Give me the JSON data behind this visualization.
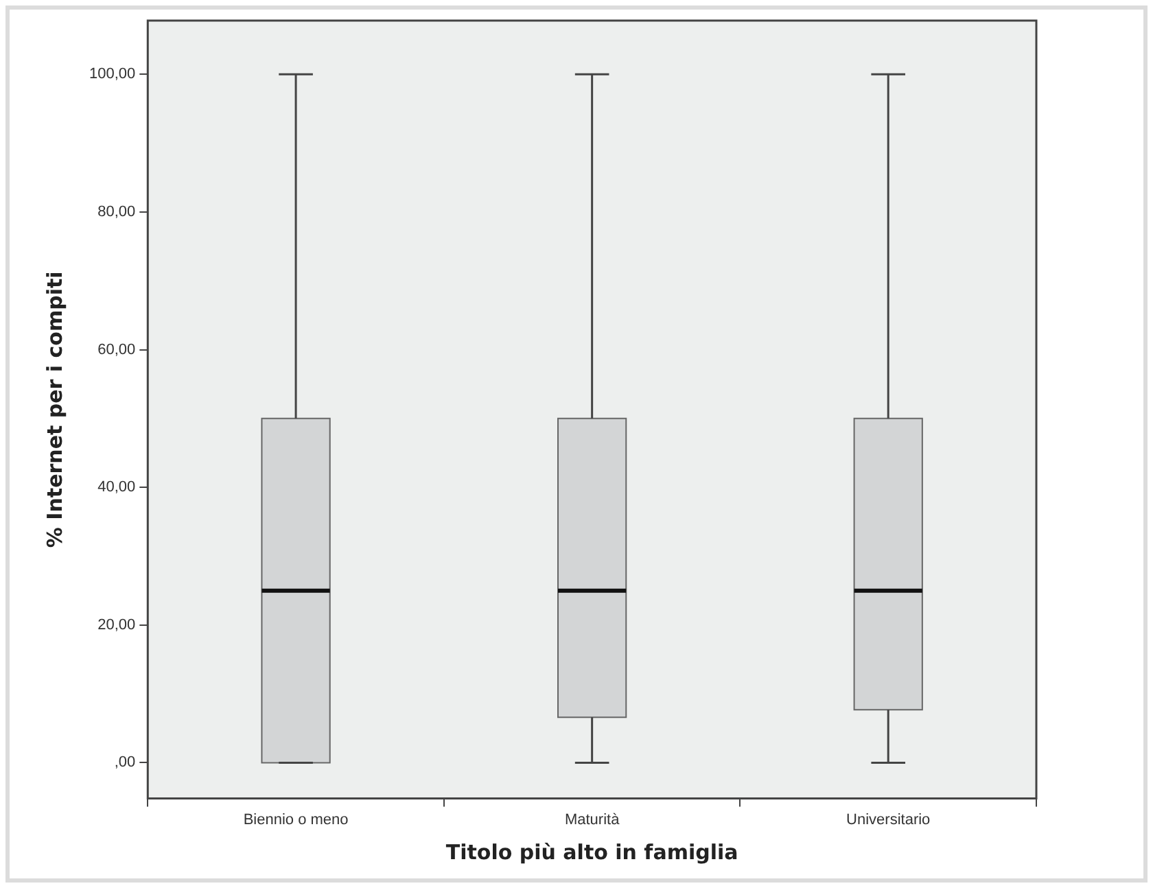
{
  "chart_data": {
    "type": "box",
    "xlabel": "Titolo più alto in famiglia",
    "ylabel": "% Internet per i compiti",
    "categories": [
      "Biennio o meno",
      "Maturità",
      "Universitario"
    ],
    "boxes": [
      {
        "low": 0,
        "q1": 0,
        "median": 25,
        "q3": 50,
        "high": 100
      },
      {
        "low": 0,
        "q1": 6.6,
        "median": 25,
        "q3": 50,
        "high": 100
      },
      {
        "low": 0,
        "q1": 7.7,
        "median": 25,
        "q3": 50,
        "high": 100
      }
    ],
    "color": "#d3d5d6",
    "ylim": [
      -5.2,
      107.8
    ],
    "yticks": [
      {
        "value": 0,
        "label": ",00"
      },
      {
        "value": 20,
        "label": "20,00"
      },
      {
        "value": 40,
        "label": "40,00"
      },
      {
        "value": 60,
        "label": "60,00"
      },
      {
        "value": 80,
        "label": "80,00"
      },
      {
        "value": 100,
        "label": "100,00"
      }
    ],
    "grid": false,
    "legend": false
  }
}
